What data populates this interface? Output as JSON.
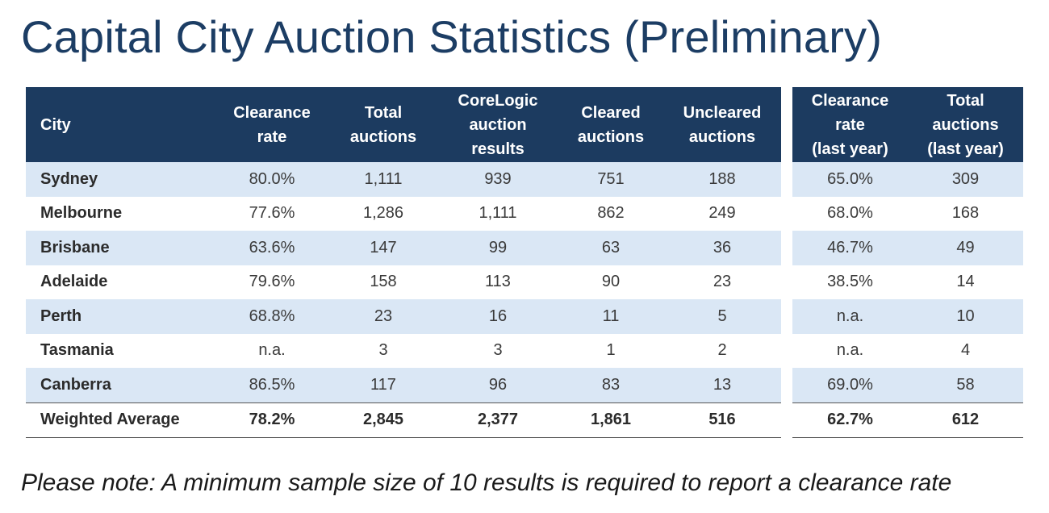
{
  "title": "Capital City Auction Statistics (Preliminary)",
  "headers": {
    "city": "City",
    "clearance_rate": [
      "Clearance",
      "rate"
    ],
    "total_auctions": [
      "Total",
      "auctions"
    ],
    "corelogic_results": [
      "CoreLogic",
      "auction",
      "results"
    ],
    "cleared_auctions": [
      "Cleared",
      "auctions"
    ],
    "uncleared_auctions": [
      "Uncleared",
      "auctions"
    ],
    "clearance_rate_last_year": [
      "Clearance",
      "rate",
      "(last year)"
    ],
    "total_auctions_last_year": [
      "Total",
      "auctions",
      "(last year)"
    ]
  },
  "rows": [
    {
      "city": "Sydney",
      "clearance_rate": "80.0%",
      "total": "1,111",
      "corelogic": "939",
      "cleared": "751",
      "uncleared": "188",
      "rate_ly": "65.0%",
      "total_ly": "309"
    },
    {
      "city": "Melbourne",
      "clearance_rate": "77.6%",
      "total": "1,286",
      "corelogic": "1,111",
      "cleared": "862",
      "uncleared": "249",
      "rate_ly": "68.0%",
      "total_ly": "168"
    },
    {
      "city": "Brisbane",
      "clearance_rate": "63.6%",
      "total": "147",
      "corelogic": "99",
      "cleared": "63",
      "uncleared": "36",
      "rate_ly": "46.7%",
      "total_ly": "49"
    },
    {
      "city": "Adelaide",
      "clearance_rate": "79.6%",
      "total": "158",
      "corelogic": "113",
      "cleared": "90",
      "uncleared": "23",
      "rate_ly": "38.5%",
      "total_ly": "14"
    },
    {
      "city": "Perth",
      "clearance_rate": "68.8%",
      "total": "23",
      "corelogic": "16",
      "cleared": "11",
      "uncleared": "5",
      "rate_ly": "n.a.",
      "total_ly": "10"
    },
    {
      "city": "Tasmania",
      "clearance_rate": "n.a.",
      "total": "3",
      "corelogic": "3",
      "cleared": "1",
      "uncleared": "2",
      "rate_ly": "n.a.",
      "total_ly": "4"
    },
    {
      "city": "Canberra",
      "clearance_rate": "86.5%",
      "total": "117",
      "corelogic": "96",
      "cleared": "83",
      "uncleared": "13",
      "rate_ly": "69.0%",
      "total_ly": "58"
    }
  ],
  "weighted_average": {
    "city": "Weighted Average",
    "clearance_rate": "78.2%",
    "total": "2,845",
    "corelogic": "2,377",
    "cleared": "1,861",
    "uncleared": "516",
    "rate_ly": "62.7%",
    "total_ly": "612"
  },
  "note": "Please note: A minimum sample size of 10 results is required to report a clearance rate",
  "colors": {
    "header_bg": "#1c3b60",
    "title": "#1c3d64",
    "row_shade": "#dae7f5"
  }
}
